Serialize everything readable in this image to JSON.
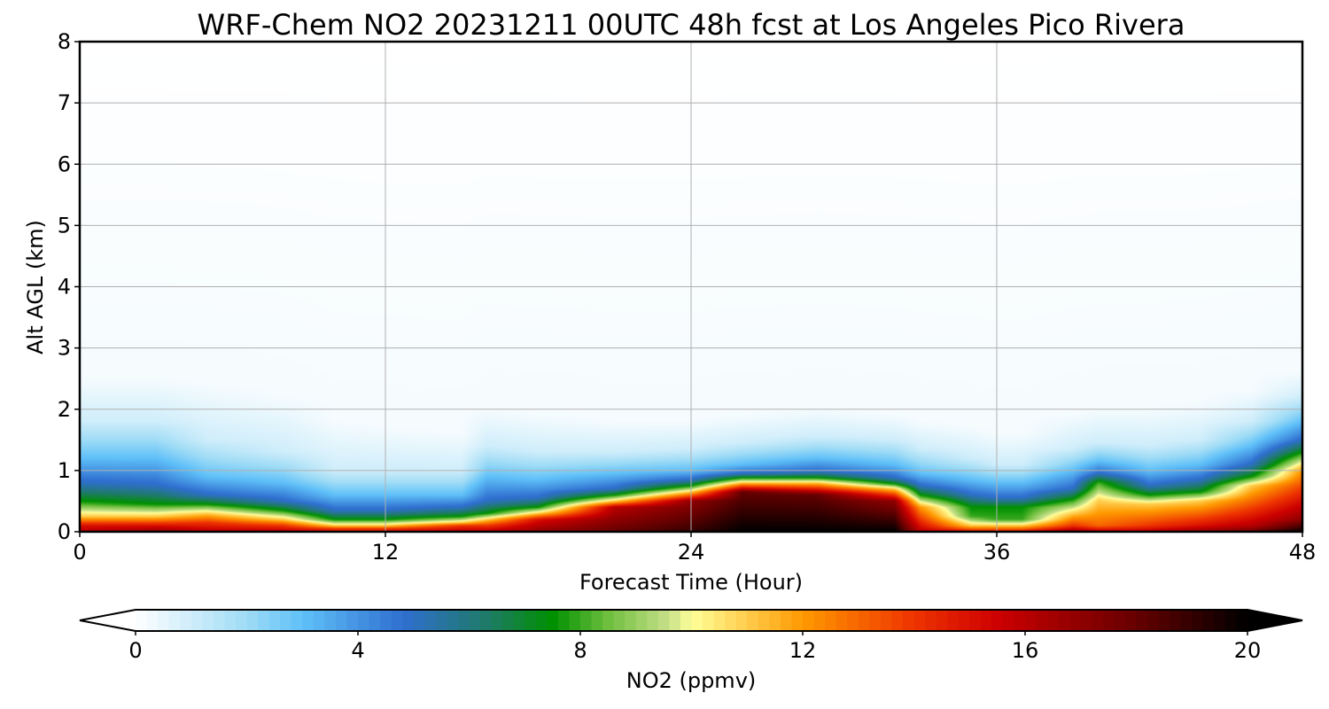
{
  "chart_data": {
    "type": "heatmap",
    "title": "WRF-Chem NO2  20231211 00UTC 48h fcst at Los Angeles Pico Rivera",
    "xlabel": "Forecast Time (Hour)",
    "ylabel": "Alt AGL (km)",
    "xlim": [
      0,
      48
    ],
    "ylim": [
      0,
      8
    ],
    "xticks": [
      "0",
      "12",
      "24",
      "36",
      "48"
    ],
    "yticks": [
      "0",
      "1",
      "2",
      "3",
      "4",
      "5",
      "6",
      "7",
      "8"
    ],
    "grid": true,
    "colorbar": {
      "label": "NO2  (ppmv)",
      "ticks": [
        "0",
        "4",
        "8",
        "12",
        "16",
        "20"
      ],
      "range": [
        0,
        20
      ],
      "extend": "both",
      "stops": [
        {
          "v": 0,
          "color": "#ffffff"
        },
        {
          "v": 2,
          "color": "#9fdcf6"
        },
        {
          "v": 3,
          "color": "#5fc0f8"
        },
        {
          "v": 4.8,
          "color": "#2f6fd0"
        },
        {
          "v": 6.3,
          "color": "#1f7a6a"
        },
        {
          "v": 7.5,
          "color": "#009000"
        },
        {
          "v": 8.5,
          "color": "#6fbf3f"
        },
        {
          "v": 9.6,
          "color": "#c8e08a"
        },
        {
          "v": 10,
          "color": "#ffff99"
        },
        {
          "v": 12,
          "color": "#ff9900"
        },
        {
          "v": 14,
          "color": "#ee3300"
        },
        {
          "v": 15.5,
          "color": "#cc0000"
        },
        {
          "v": 18,
          "color": "#660000"
        },
        {
          "v": 20,
          "color": "#000000"
        }
      ]
    },
    "times": [
      0,
      3,
      5,
      8,
      10,
      12,
      15,
      16,
      18,
      21,
      24,
      26,
      29,
      32,
      33,
      35,
      36,
      37,
      39,
      40,
      42,
      44,
      46,
      48
    ],
    "profiles": [
      {
        "t": 0,
        "heights": [
          0,
          0.1,
          0.25,
          0.5,
          0.8,
          1.2,
          1.8,
          2.5,
          8
        ],
        "values": [
          16,
          15,
          11,
          7.5,
          5,
          3,
          1,
          0.2,
          0
        ]
      },
      {
        "t": 3,
        "heights": [
          0,
          0.1,
          0.25,
          0.45,
          0.75,
          1.2,
          1.8,
          2.5,
          8
        ],
        "values": [
          17,
          15,
          11,
          7.5,
          5,
          3,
          1,
          0.2,
          0
        ]
      },
      {
        "t": 5,
        "heights": [
          0,
          0.15,
          0.3,
          0.45,
          0.6,
          0.9,
          1.5,
          2.4,
          8
        ],
        "values": [
          16,
          14,
          11,
          7.5,
          5,
          3,
          1,
          0.2,
          0
        ]
      },
      {
        "t": 8,
        "heights": [
          0,
          0.1,
          0.2,
          0.35,
          0.5,
          0.8,
          1.3,
          2.2,
          8
        ],
        "values": [
          16,
          14,
          11,
          7.5,
          5,
          3,
          1,
          0.2,
          0
        ]
      },
      {
        "t": 10,
        "heights": [
          0,
          0.05,
          0.1,
          0.2,
          0.35,
          0.6,
          1.0,
          1.8,
          8
        ],
        "values": [
          15,
          14,
          11,
          7.5,
          5,
          3,
          1,
          0.2,
          0
        ]
      },
      {
        "t": 12,
        "heights": [
          0,
          0.05,
          0.1,
          0.2,
          0.35,
          0.6,
          1.0,
          1.7,
          8
        ],
        "values": [
          15,
          14,
          11,
          7.5,
          5,
          3,
          1,
          0.2,
          0
        ]
      },
      {
        "t": 15,
        "heights": [
          0,
          0.1,
          0.15,
          0.25,
          0.4,
          0.6,
          1.0,
          1.6,
          8
        ],
        "values": [
          16,
          14,
          11,
          7.5,
          5,
          3,
          1,
          0.2,
          0
        ]
      },
      {
        "t": 16,
        "heights": [
          0,
          0.1,
          0.2,
          0.3,
          0.5,
          0.9,
          1.4,
          2.0,
          8
        ],
        "values": [
          16,
          14,
          11,
          7.5,
          5,
          3,
          1,
          0.2,
          0
        ]
      },
      {
        "t": 18,
        "heights": [
          0,
          0.2,
          0.3,
          0.4,
          0.55,
          0.85,
          1.3,
          1.9,
          8
        ],
        "values": [
          17,
          15,
          11,
          7.5,
          5,
          3,
          1,
          0.2,
          0
        ]
      },
      {
        "t": 21,
        "heights": [
          0,
          0.4,
          0.5,
          0.6,
          0.7,
          0.95,
          1.3,
          1.8,
          8
        ],
        "values": [
          18,
          16,
          11,
          7.5,
          5,
          3,
          1,
          0.2,
          0
        ]
      },
      {
        "t": 24,
        "heights": [
          0,
          0.5,
          0.65,
          0.75,
          0.85,
          1.0,
          1.35,
          1.8,
          8
        ],
        "values": [
          19,
          17,
          11,
          7.5,
          5,
          3,
          1,
          0.2,
          0
        ]
      },
      {
        "t": 26,
        "heights": [
          0,
          0.65,
          0.8,
          0.88,
          0.95,
          1.1,
          1.45,
          1.9,
          8
        ],
        "values": [
          20,
          18,
          11,
          7.5,
          5,
          3,
          1,
          0.2,
          0
        ]
      },
      {
        "t": 29,
        "heights": [
          0,
          0.6,
          0.8,
          0.88,
          0.98,
          1.2,
          1.55,
          2.0,
          8
        ],
        "values": [
          20,
          18,
          11,
          7.5,
          5,
          3,
          1,
          0.2,
          0
        ]
      },
      {
        "t": 32,
        "heights": [
          0,
          0.5,
          0.7,
          0.78,
          0.88,
          1.1,
          1.5,
          1.9,
          8
        ],
        "values": [
          20,
          17,
          11,
          7.5,
          5,
          3,
          1,
          0.2,
          0
        ]
      },
      {
        "t": 33,
        "heights": [
          0,
          0.1,
          0.4,
          0.6,
          0.75,
          0.95,
          1.35,
          1.8,
          8
        ],
        "values": [
          16,
          15,
          12,
          7.5,
          5,
          3,
          1,
          0.2,
          0
        ]
      },
      {
        "t": 35,
        "heights": [
          0,
          0.1,
          0.25,
          0.4,
          0.6,
          0.85,
          1.2,
          1.7,
          8
        ],
        "values": [
          15,
          11,
          8,
          7.5,
          5,
          3,
          1,
          0.2,
          0
        ]
      },
      {
        "t": 36,
        "heights": [
          0,
          0.1,
          0.2,
          0.4,
          0.55,
          0.8,
          1.1,
          1.6,
          8
        ],
        "values": [
          15,
          11,
          8,
          7.5,
          5,
          3,
          1,
          0.2,
          0
        ]
      },
      {
        "t": 37,
        "heights": [
          0,
          0.1,
          0.2,
          0.4,
          0.55,
          0.8,
          1.1,
          1.6,
          8
        ],
        "values": [
          15,
          11,
          8,
          7.5,
          5,
          3,
          1,
          0.2,
          0
        ]
      },
      {
        "t": 39,
        "heights": [
          0,
          0.1,
          0.3,
          0.5,
          0.7,
          1.0,
          1.35,
          1.9,
          8
        ],
        "values": [
          17,
          14,
          11,
          8,
          5,
          3,
          1,
          0.2,
          0
        ]
      },
      {
        "t": 40,
        "heights": [
          0,
          0.1,
          0.5,
          0.8,
          0.95,
          1.15,
          1.45,
          2.0,
          8
        ],
        "values": [
          16,
          13,
          11,
          8,
          5,
          3,
          1,
          0.2,
          0
        ]
      },
      {
        "t": 42,
        "heights": [
          0,
          0.1,
          0.45,
          0.6,
          0.75,
          1.0,
          1.4,
          2.0,
          8
        ],
        "values": [
          16,
          14,
          11,
          7.5,
          5,
          3,
          1,
          0.2,
          0
        ]
      },
      {
        "t": 44,
        "heights": [
          0,
          0.1,
          0.5,
          0.65,
          0.85,
          1.1,
          1.5,
          2.1,
          8
        ],
        "values": [
          17,
          15,
          11,
          7.5,
          5,
          3,
          1,
          0.2,
          0
        ]
      },
      {
        "t": 46,
        "heights": [
          0,
          0.1,
          0.75,
          0.9,
          1.1,
          1.4,
          1.8,
          2.3,
          8
        ],
        "values": [
          18,
          16,
          11,
          7.5,
          5,
          3,
          1,
          0.2,
          0
        ]
      },
      {
        "t": 48,
        "heights": [
          0,
          0.2,
          1.0,
          1.3,
          1.5,
          1.8,
          2.2,
          2.6,
          8
        ],
        "values": [
          20,
          17,
          12,
          7.5,
          5,
          3,
          1,
          0.2,
          0
        ]
      }
    ]
  }
}
